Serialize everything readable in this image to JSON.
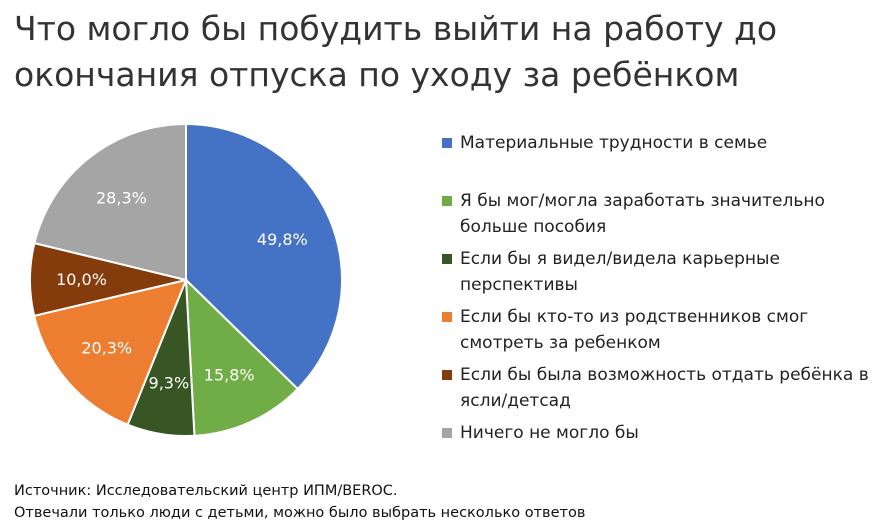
{
  "title_lines": [
    "Что могло бы побудить выйти на работу до",
    "окончания отпуска по уходу за ребёнком"
  ],
  "chart_data": {
    "type": "pie",
    "title": "Что могло бы побудить выйти на работу до окончания отпуска по уходу за ребёнком",
    "legend_position": "right",
    "categories": [
      "Материальные трудности в семье",
      "Я бы мог/могла заработать значительно больше пособия",
      "Если бы я видел/видела карьерные перспективы",
      "Если бы кто-то из родственников смог смотреть за ребенком",
      "Если бы была возможность отдать ребёнка в ясли/детсад",
      "Ничего не могло бы"
    ],
    "values": [
      49.8,
      15.8,
      9.3,
      20.3,
      10.0,
      28.3
    ],
    "labels": [
      "49,8%",
      "15,8%",
      "9,3%",
      "20,3%",
      "10,0%",
      "28,3%"
    ],
    "colors": [
      "#4472C4",
      "#70AD47",
      "#375623",
      "#ED7D31",
      "#843C0C",
      "#A5A5A5"
    ]
  },
  "footer": {
    "source": "Источник: Исследовательский центр ИПМ/BEROC.",
    "note": "Отвечали только люди с детьми, можно было выбрать несколько ответов"
  }
}
